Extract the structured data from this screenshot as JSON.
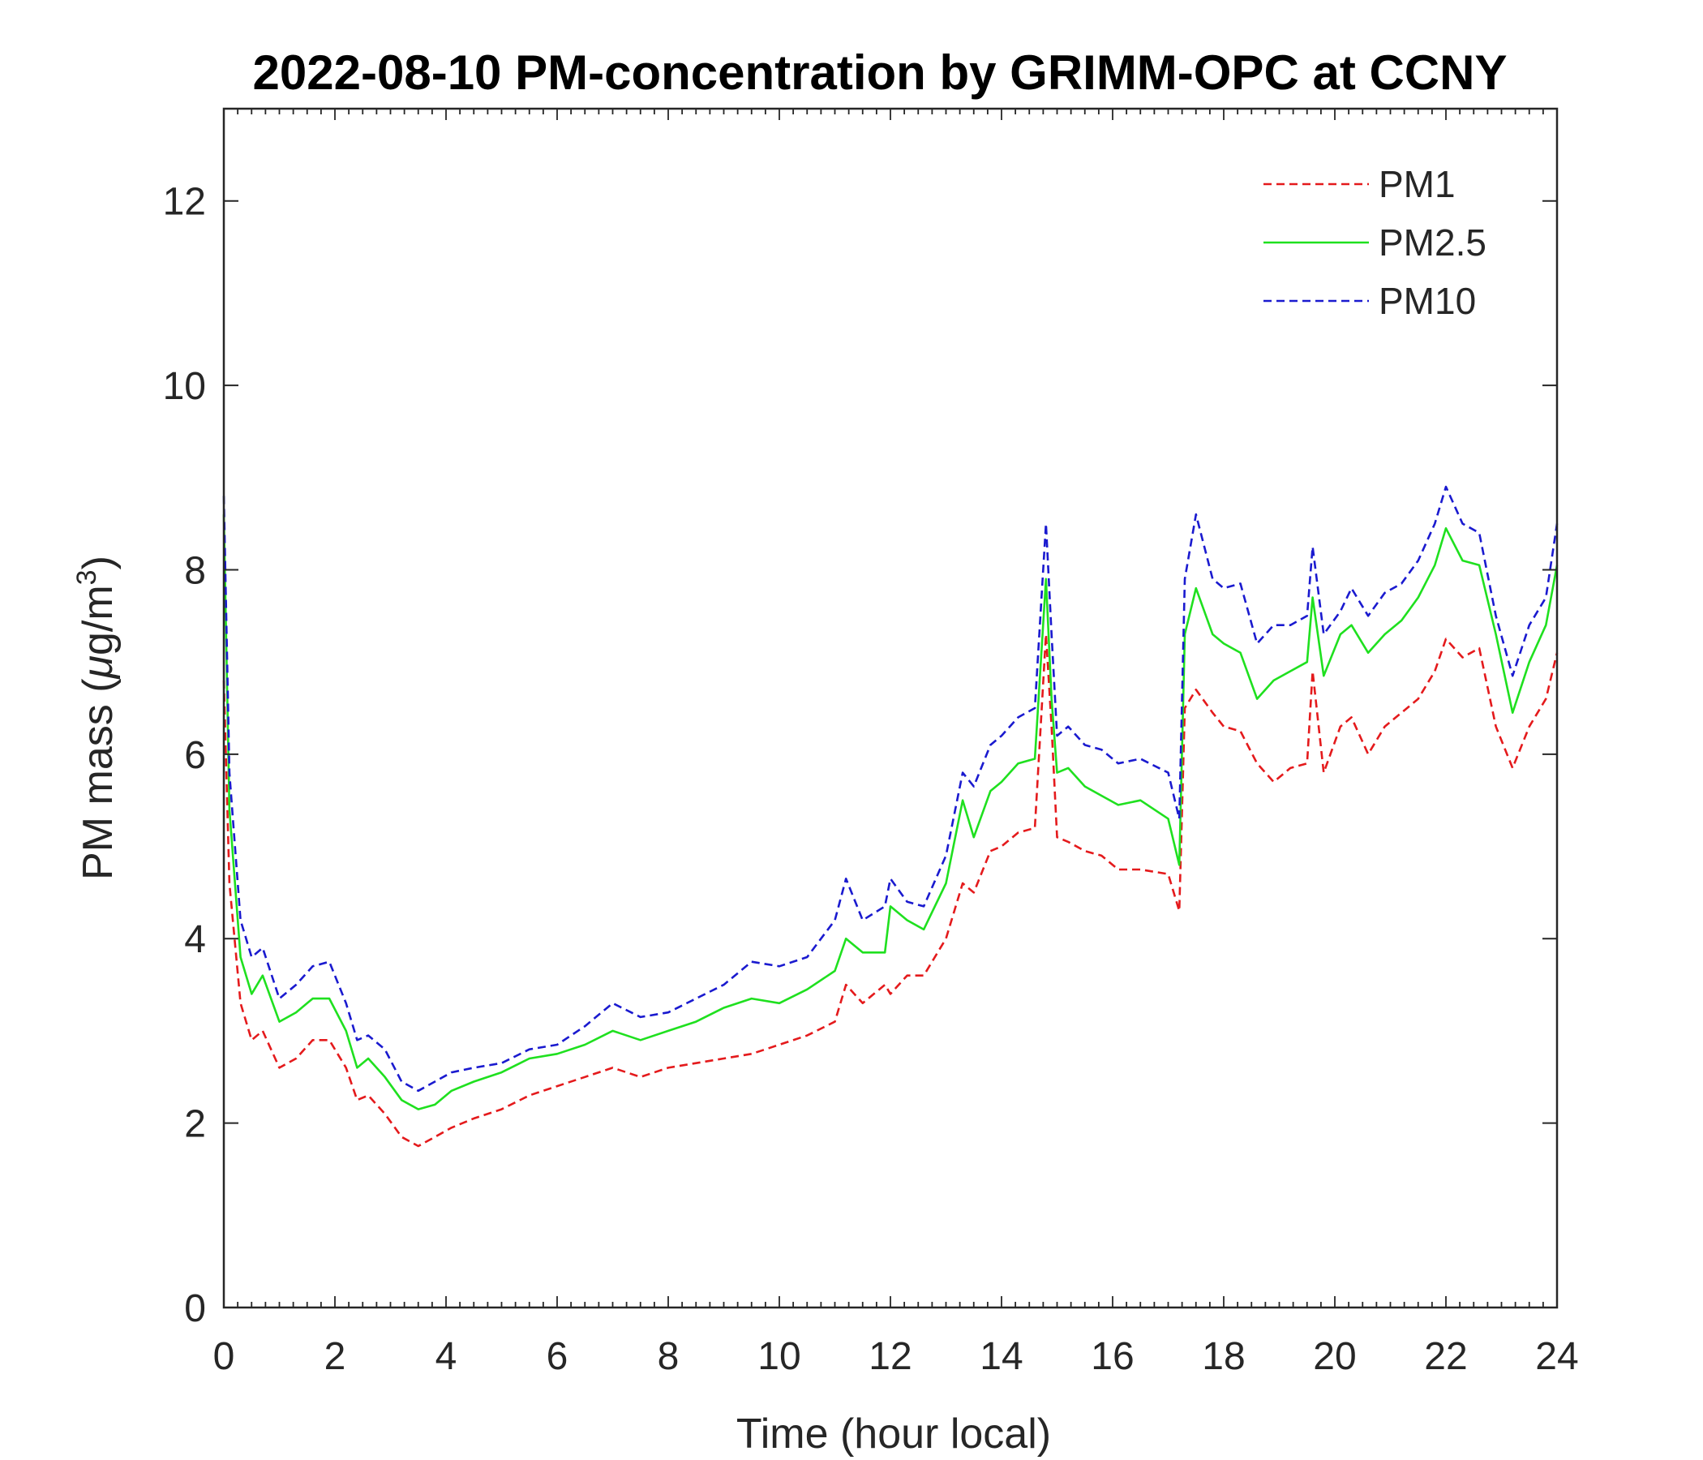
{
  "chart_data": {
    "type": "line",
    "title": "2022-08-10 PM-concentration by GRIMM-OPC at CCNY",
    "xlabel": "Time (hour local)",
    "ylabel": {
      "prefix": "PM mass (",
      "mu": "μ",
      "unit": "g/m",
      "exponent": "3",
      "suffix": ")"
    },
    "xlim": [
      0,
      24
    ],
    "ylim": [
      0,
      13
    ],
    "xticks": [
      "0",
      "2",
      "4",
      "6",
      "8",
      "10",
      "12",
      "14",
      "16",
      "18",
      "20",
      "22",
      "24"
    ],
    "yticks": [
      "0",
      "2",
      "4",
      "6",
      "8",
      "10",
      "12"
    ],
    "grid": false,
    "legend_position": "top-right",
    "x": [
      0,
      0.1,
      0.3,
      0.5,
      0.7,
      1.0,
      1.3,
      1.6,
      1.9,
      2.2,
      2.4,
      2.6,
      2.9,
      3.2,
      3.5,
      3.8,
      4.1,
      4.5,
      5.0,
      5.5,
      6.0,
      6.5,
      7.0,
      7.5,
      8.0,
      8.5,
      9.0,
      9.5,
      10.0,
      10.5,
      11.0,
      11.2,
      11.5,
      11.9,
      12.0,
      12.3,
      12.6,
      13.0,
      13.3,
      13.5,
      13.8,
      14.0,
      14.3,
      14.6,
      14.8,
      14.9,
      15.0,
      15.2,
      15.5,
      15.8,
      16.1,
      16.5,
      17.0,
      17.2,
      17.3,
      17.5,
      17.8,
      18.0,
      18.3,
      18.6,
      18.9,
      19.2,
      19.5,
      19.6,
      19.8,
      20.1,
      20.3,
      20.6,
      20.9,
      21.2,
      21.5,
      21.8,
      22.0,
      22.3,
      22.6,
      22.9,
      23.2,
      23.5,
      23.8,
      24.0
    ],
    "series": [
      {
        "name": "PM1",
        "color": "#e41a1c",
        "style": "dashed",
        "values": [
          6.8,
          4.6,
          3.3,
          2.9,
          3.0,
          2.6,
          2.7,
          2.9,
          2.9,
          2.6,
          2.25,
          2.3,
          2.1,
          1.85,
          1.75,
          1.85,
          1.95,
          2.05,
          2.15,
          2.3,
          2.4,
          2.5,
          2.6,
          2.5,
          2.6,
          2.65,
          2.7,
          2.75,
          2.85,
          2.95,
          3.1,
          3.5,
          3.3,
          3.5,
          3.4,
          3.6,
          3.6,
          4.0,
          4.6,
          4.5,
          4.95,
          5.0,
          5.15,
          5.2,
          7.3,
          6.3,
          5.1,
          5.05,
          4.95,
          4.9,
          4.75,
          4.75,
          4.7,
          4.3,
          6.5,
          6.7,
          6.45,
          6.3,
          6.25,
          5.9,
          5.7,
          5.85,
          5.9,
          6.9,
          5.8,
          6.3,
          6.4,
          6.0,
          6.3,
          6.45,
          6.6,
          6.9,
          7.25,
          7.05,
          7.15,
          6.3,
          5.85,
          6.3,
          6.6,
          7.1
        ]
      },
      {
        "name": "PM2.5",
        "color": "#1fe01f",
        "style": "solid",
        "values": [
          8.6,
          5.4,
          3.8,
          3.4,
          3.6,
          3.1,
          3.2,
          3.35,
          3.35,
          3.0,
          2.6,
          2.7,
          2.5,
          2.25,
          2.15,
          2.2,
          2.35,
          2.45,
          2.55,
          2.7,
          2.75,
          2.85,
          3.0,
          2.9,
          3.0,
          3.1,
          3.25,
          3.35,
          3.3,
          3.45,
          3.65,
          4.0,
          3.85,
          3.85,
          4.35,
          4.2,
          4.1,
          4.6,
          5.5,
          5.1,
          5.6,
          5.7,
          5.9,
          5.95,
          7.9,
          6.6,
          5.8,
          5.85,
          5.65,
          5.55,
          5.45,
          5.5,
          5.3,
          4.8,
          7.3,
          7.8,
          7.3,
          7.2,
          7.1,
          6.6,
          6.8,
          6.9,
          7.0,
          7.7,
          6.85,
          7.3,
          7.4,
          7.1,
          7.3,
          7.45,
          7.7,
          8.05,
          8.45,
          8.1,
          8.05,
          7.3,
          6.45,
          7.0,
          7.4,
          8.05
        ]
      },
      {
        "name": "PM10",
        "color": "#1a1acf",
        "style": "dashed",
        "values": [
          8.8,
          5.8,
          4.2,
          3.8,
          3.9,
          3.35,
          3.5,
          3.7,
          3.75,
          3.3,
          2.9,
          2.95,
          2.8,
          2.45,
          2.35,
          2.45,
          2.55,
          2.6,
          2.65,
          2.8,
          2.85,
          3.05,
          3.3,
          3.15,
          3.2,
          3.35,
          3.5,
          3.75,
          3.7,
          3.8,
          4.2,
          4.65,
          4.2,
          4.35,
          4.65,
          4.4,
          4.35,
          4.9,
          5.8,
          5.65,
          6.1,
          6.2,
          6.4,
          6.5,
          8.5,
          7.3,
          6.2,
          6.3,
          6.1,
          6.05,
          5.9,
          5.95,
          5.8,
          5.3,
          7.9,
          8.6,
          7.9,
          7.8,
          7.85,
          7.2,
          7.4,
          7.4,
          7.5,
          8.25,
          7.3,
          7.55,
          7.8,
          7.5,
          7.75,
          7.85,
          8.1,
          8.5,
          8.9,
          8.5,
          8.4,
          7.5,
          6.85,
          7.4,
          7.7,
          8.5
        ]
      }
    ]
  }
}
